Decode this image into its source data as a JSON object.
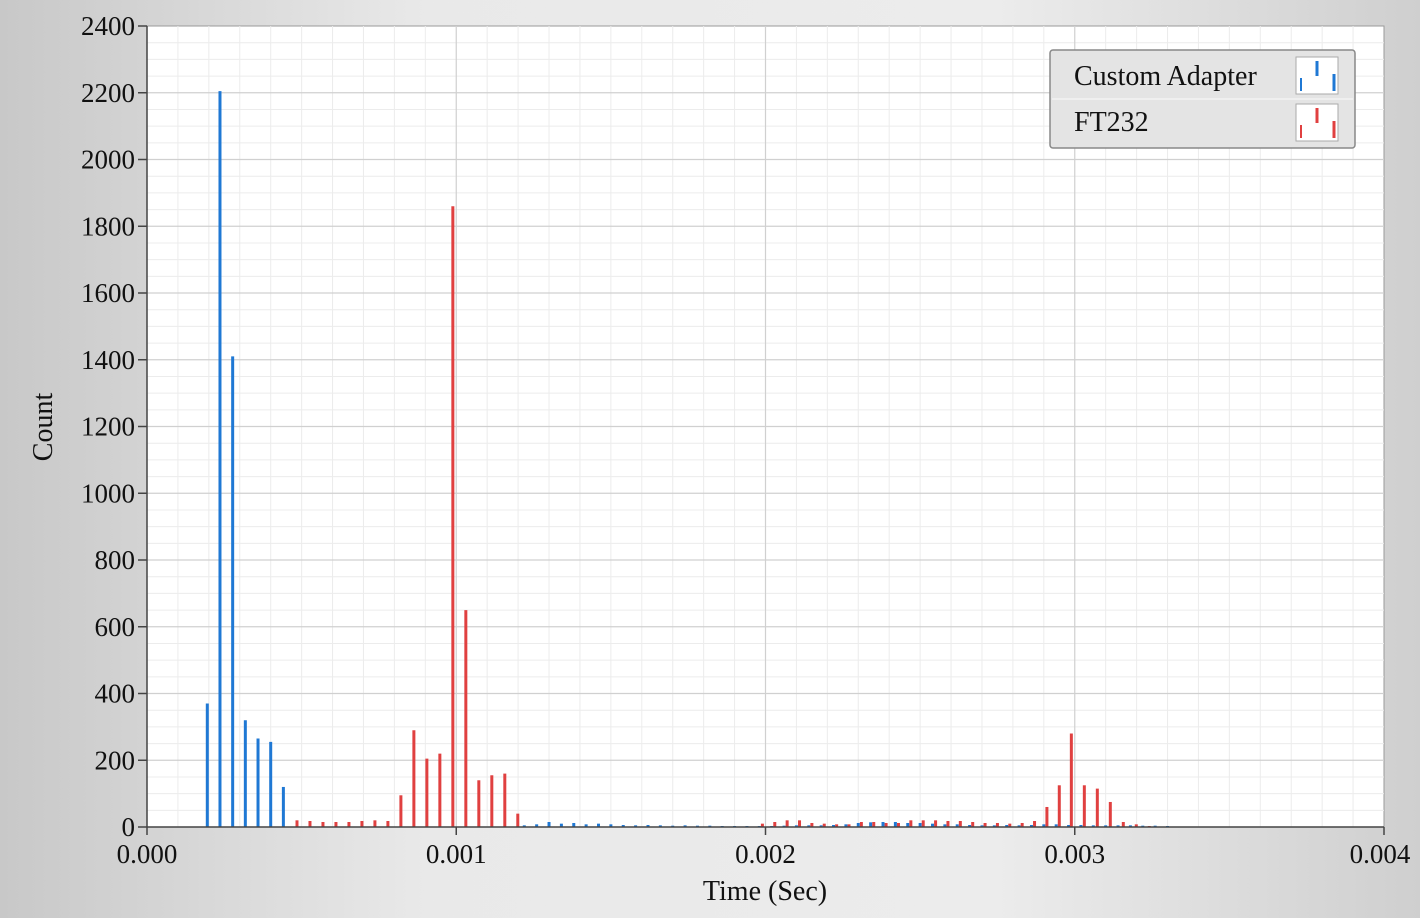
{
  "chart_data": {
    "type": "bar",
    "xlabel": "Time (Sec)",
    "ylabel": "Count",
    "xlim": [
      0,
      0.004
    ],
    "ylim": [
      0,
      2400
    ],
    "xticks": [
      "0.000",
      "0.001",
      "0.002",
      "0.003",
      "0.004"
    ],
    "yticks": [
      "0",
      "200",
      "400",
      "600",
      "800",
      "1000",
      "1200",
      "1400",
      "1600",
      "1800",
      "2000",
      "2200",
      "2400"
    ],
    "grid": true,
    "legend_position": "top-right",
    "series": [
      {
        "name": "Custom Adapter",
        "color": "#1f78d4",
        "x": [
          0.000195,
          0.000236,
          0.000277,
          0.000318,
          0.000359,
          0.0004,
          0.000441,
          0.00122,
          0.00126,
          0.0013,
          0.00134,
          0.00138,
          0.00142,
          0.00146,
          0.0015,
          0.00154,
          0.00158,
          0.00162,
          0.00166,
          0.0017,
          0.00174,
          0.00178,
          0.00182,
          0.00186,
          0.0019,
          0.00194,
          0.00198,
          0.00202,
          0.00206,
          0.0021,
          0.00214,
          0.00218,
          0.00222,
          0.00226,
          0.0023,
          0.00234,
          0.00238,
          0.00242,
          0.00246,
          0.0025,
          0.00254,
          0.00258,
          0.00262,
          0.00266,
          0.0027,
          0.00274,
          0.00278,
          0.00282,
          0.00286,
          0.0029,
          0.00294,
          0.00298,
          0.00302,
          0.00306,
          0.0031,
          0.00314,
          0.00318,
          0.00322,
          0.00326,
          0.0033
        ],
        "values": [
          370,
          2205,
          1410,
          320,
          265,
          255,
          120,
          5,
          8,
          15,
          10,
          12,
          8,
          10,
          8,
          6,
          5,
          6,
          5,
          4,
          5,
          4,
          4,
          3,
          3,
          3,
          3,
          3,
          4,
          5,
          5,
          5,
          6,
          8,
          12,
          14,
          15,
          15,
          12,
          12,
          10,
          8,
          8,
          6,
          5,
          5,
          6,
          5,
          6,
          8,
          8,
          6,
          6,
          5,
          5,
          5,
          5,
          4,
          4,
          3
        ]
      },
      {
        "name": "FT232",
        "color": "#e04040",
        "x": [
          0.000485,
          0.000527,
          0.000569,
          0.000611,
          0.000653,
          0.000695,
          0.000737,
          0.000779,
          0.000821,
          0.000863,
          0.000905,
          0.000947,
          0.000989,
          0.001031,
          0.001073,
          0.001115,
          0.001157,
          0.001199,
          0.00199,
          0.00203,
          0.00207,
          0.00211,
          0.00215,
          0.00219,
          0.00223,
          0.00227,
          0.00231,
          0.00235,
          0.00239,
          0.00243,
          0.00247,
          0.00251,
          0.00255,
          0.00259,
          0.00263,
          0.00267,
          0.00271,
          0.00275,
          0.00279,
          0.00283,
          0.00287,
          0.00291,
          0.00295,
          0.002989,
          0.003031,
          0.003073,
          0.003115,
          0.003157,
          0.003199,
          0.003241
        ],
        "values": [
          20,
          18,
          15,
          15,
          15,
          18,
          20,
          18,
          95,
          290,
          205,
          220,
          1860,
          650,
          140,
          155,
          160,
          40,
          10,
          15,
          20,
          20,
          12,
          10,
          8,
          8,
          15,
          15,
          12,
          12,
          20,
          20,
          20,
          18,
          18,
          15,
          12,
          12,
          10,
          12,
          18,
          60,
          125,
          280,
          125,
          115,
          75,
          15,
          8,
          3
        ]
      }
    ]
  }
}
